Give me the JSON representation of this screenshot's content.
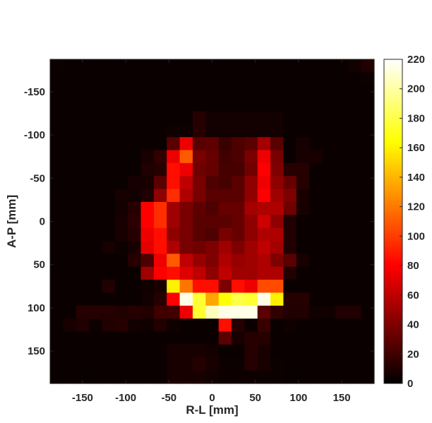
{
  "chart_data": {
    "type": "heatmap",
    "title": "",
    "xlabel": "R-L [mm]",
    "ylabel": "A-P [mm]",
    "x_range": [
      -187.5,
      187.5
    ],
    "y_range": [
      -187.5,
      187.5
    ],
    "y_reversed": true,
    "cell_size_mm": 15,
    "grid": false,
    "colormap": "hot",
    "clim": [
      0,
      220
    ],
    "colorbar_position": "right",
    "x_ticks": [
      {
        "value": -150,
        "label": "-150"
      },
      {
        "value": -100,
        "label": "-100"
      },
      {
        "value": -50,
        "label": "-50"
      },
      {
        "value": 0,
        "label": "0"
      },
      {
        "value": 50,
        "label": "50"
      },
      {
        "value": 100,
        "label": "100"
      },
      {
        "value": 150,
        "label": "150"
      }
    ],
    "y_ticks": [
      {
        "value": -150,
        "label": "-150"
      },
      {
        "value": -100,
        "label": "-100"
      },
      {
        "value": -50,
        "label": "-50"
      },
      {
        "value": 0,
        "label": "0"
      },
      {
        "value": 50,
        "label": "50"
      },
      {
        "value": 100,
        "label": "100"
      },
      {
        "value": 150,
        "label": "150"
      }
    ],
    "colorbar_ticks": [
      {
        "value": 0,
        "label": "0"
      },
      {
        "value": 20,
        "label": "20"
      },
      {
        "value": 40,
        "label": "40"
      },
      {
        "value": 60,
        "label": "60"
      },
      {
        "value": 80,
        "label": "80"
      },
      {
        "value": 100,
        "label": "100"
      },
      {
        "value": 120,
        "label": "120"
      },
      {
        "value": 140,
        "label": "140"
      },
      {
        "value": 160,
        "label": "160"
      },
      {
        "value": 180,
        "label": "180"
      },
      {
        "value": 200,
        "label": "200"
      },
      {
        "value": 220,
        "label": "220"
      }
    ],
    "x_centers": [
      -180,
      -165,
      -150,
      -135,
      -120,
      -105,
      -90,
      -75,
      -60,
      -45,
      -30,
      -15,
      0,
      15,
      30,
      45,
      60,
      75,
      90,
      105,
      120,
      135,
      150,
      165,
      180
    ],
    "y_centers": [
      -180,
      -165,
      -150,
      -135,
      -120,
      -105,
      -90,
      -75,
      -60,
      -45,
      -30,
      -15,
      0,
      15,
      30,
      45,
      60,
      75,
      90,
      105,
      120,
      135,
      150,
      165,
      180
    ],
    "values": [
      [
        4,
        3,
        3,
        3,
        3,
        3,
        3,
        3,
        3,
        3,
        3,
        3,
        3,
        3,
        3,
        3,
        3,
        3,
        3,
        3,
        3,
        3,
        3,
        6,
        10
      ],
      [
        3,
        3,
        3,
        3,
        3,
        3,
        3,
        3,
        3,
        3,
        3,
        3,
        3,
        3,
        3,
        3,
        3,
        3,
        3,
        3,
        3,
        3,
        3,
        3,
        4
      ],
      [
        3,
        3,
        3,
        3,
        3,
        3,
        3,
        3,
        3,
        3,
        3,
        3,
        3,
        3,
        3,
        3,
        3,
        3,
        3,
        3,
        3,
        3,
        3,
        3,
        3
      ],
      [
        3,
        3,
        3,
        3,
        3,
        3,
        3,
        3,
        3,
        3,
        3,
        3,
        3,
        3,
        3,
        3,
        3,
        3,
        3,
        3,
        3,
        3,
        3,
        3,
        3
      ],
      [
        3,
        3,
        3,
        3,
        3,
        3,
        3,
        3,
        3,
        3,
        3,
        12,
        6,
        6,
        6,
        6,
        6,
        6,
        3,
        3,
        3,
        3,
        3,
        3,
        3
      ],
      [
        3,
        3,
        3,
        3,
        3,
        3,
        3,
        3,
        3,
        5,
        4,
        12,
        6,
        6,
        6,
        6,
        6,
        6,
        3,
        3,
        3,
        3,
        3,
        3,
        3
      ],
      [
        3,
        3,
        3,
        3,
        3,
        3,
        3,
        3,
        3,
        28,
        75,
        28,
        30,
        18,
        24,
        28,
        52,
        28,
        3,
        8,
        3,
        3,
        3,
        3,
        3
      ],
      [
        3,
        3,
        3,
        3,
        3,
        3,
        3,
        8,
        15,
        75,
        110,
        38,
        32,
        20,
        24,
        38,
        75,
        38,
        3,
        8,
        8,
        3,
        3,
        3,
        3
      ],
      [
        3,
        3,
        3,
        3,
        3,
        3,
        3,
        10,
        12,
        85,
        75,
        35,
        32,
        22,
        22,
        35,
        80,
        40,
        12,
        12,
        3,
        3,
        3,
        3,
        3
      ],
      [
        3,
        3,
        3,
        3,
        3,
        3,
        8,
        8,
        28,
        85,
        60,
        38,
        25,
        22,
        28,
        45,
        75,
        45,
        32,
        12,
        3,
        3,
        3,
        3,
        3
      ],
      [
        3,
        3,
        3,
        3,
        3,
        7,
        6,
        10,
        45,
        95,
        55,
        38,
        28,
        28,
        28,
        45,
        80,
        50,
        40,
        8,
        3,
        3,
        3,
        3,
        3
      ],
      [
        3,
        3,
        3,
        3,
        3,
        6,
        12,
        80,
        95,
        50,
        38,
        30,
        25,
        32,
        32,
        52,
        55,
        55,
        35,
        8,
        3,
        3,
        3,
        3,
        3
      ],
      [
        3,
        3,
        3,
        3,
        3,
        8,
        14,
        80,
        95,
        50,
        38,
        28,
        28,
        28,
        32,
        45,
        65,
        45,
        10,
        3,
        3,
        3,
        3,
        3,
        3
      ],
      [
        3,
        3,
        3,
        3,
        3,
        8,
        12,
        75,
        85,
        45,
        38,
        28,
        25,
        38,
        32,
        45,
        55,
        55,
        10,
        3,
        3,
        3,
        3,
        3,
        3
      ],
      [
        3,
        3,
        3,
        3,
        7,
        4,
        8,
        72,
        85,
        55,
        38,
        35,
        40,
        50,
        40,
        50,
        60,
        52,
        10,
        3,
        3,
        3,
        3,
        3,
        3
      ],
      [
        3,
        3,
        3,
        3,
        3,
        3,
        12,
        24,
        75,
        110,
        60,
        48,
        40,
        55,
        48,
        50,
        55,
        40,
        28,
        8,
        3,
        3,
        3,
        3,
        3
      ],
      [
        3,
        3,
        3,
        3,
        3,
        3,
        3,
        50,
        80,
        85,
        70,
        60,
        45,
        60,
        50,
        50,
        55,
        55,
        10,
        3,
        3,
        3,
        3,
        3,
        3
      ],
      [
        3,
        3,
        3,
        3,
        10,
        3,
        3,
        5,
        8,
        160,
        118,
        85,
        85,
        40,
        85,
        75,
        105,
        105,
        3,
        3,
        3,
        3,
        3,
        3,
        3
      ],
      [
        3,
        3,
        3,
        3,
        3,
        3,
        3,
        6,
        12,
        80,
        215,
        175,
        135,
        165,
        180,
        175,
        215,
        160,
        12,
        12,
        3,
        3,
        3,
        3,
        3
      ],
      [
        3,
        3,
        12,
        12,
        12,
        10,
        12,
        10,
        20,
        20,
        75,
        175,
        205,
        215,
        215,
        215,
        28,
        15,
        10,
        10,
        5,
        5,
        10,
        10,
        3
      ],
      [
        3,
        8,
        10,
        4,
        10,
        12,
        6,
        5,
        10,
        5,
        3,
        3,
        3,
        85,
        12,
        3,
        18,
        3,
        5,
        3,
        3,
        3,
        3,
        3,
        3
      ],
      [
        3,
        3,
        3,
        3,
        3,
        3,
        3,
        3,
        3,
        3,
        3,
        3,
        3,
        28,
        8,
        12,
        12,
        3,
        3,
        3,
        3,
        3,
        3,
        3,
        3
      ],
      [
        3,
        3,
        3,
        3,
        3,
        3,
        3,
        3,
        3,
        8,
        8,
        8,
        6,
        3,
        3,
        12,
        8,
        3,
        3,
        3,
        3,
        3,
        3,
        3,
        3
      ],
      [
        3,
        3,
        3,
        3,
        3,
        3,
        3,
        3,
        3,
        8,
        8,
        12,
        8,
        4,
        4,
        12,
        8,
        4,
        3,
        3,
        3,
        3,
        3,
        3,
        3
      ],
      [
        3,
        3,
        3,
        3,
        3,
        3,
        3,
        3,
        3,
        8,
        8,
        8,
        6,
        4,
        4,
        4,
        4,
        4,
        3,
        3,
        3,
        3,
        3,
        3,
        3
      ]
    ]
  }
}
